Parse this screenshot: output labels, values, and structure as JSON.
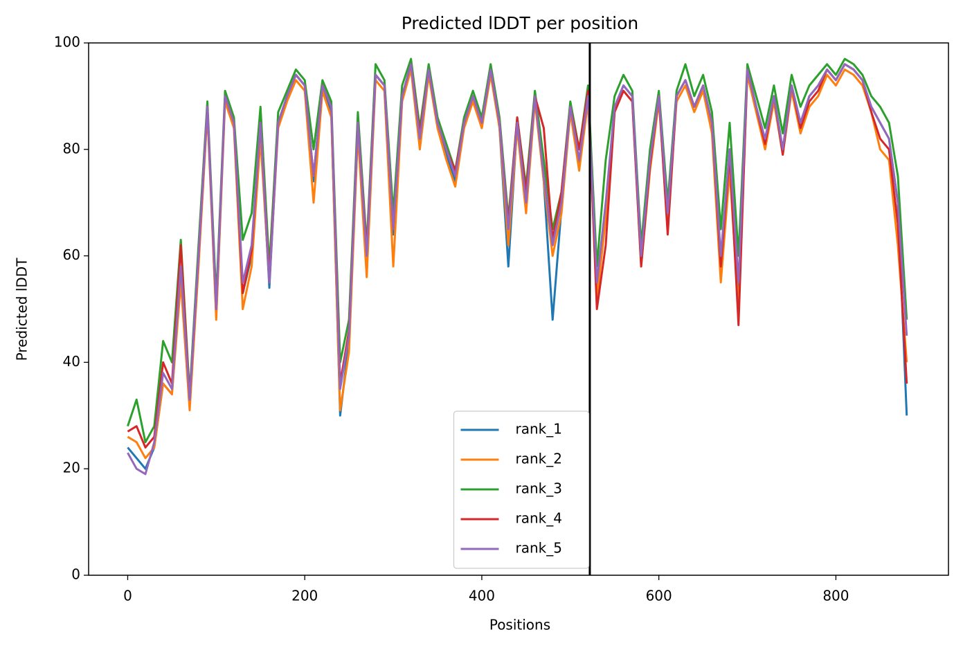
{
  "chart_data": {
    "type": "line",
    "title": "Predicted lDDT per position",
    "xlabel": "Positions",
    "ylabel": "Predicted lDDT",
    "x": [
      0,
      10,
      20,
      30,
      40,
      50,
      60,
      70,
      80,
      90,
      100,
      110,
      120,
      130,
      140,
      150,
      160,
      170,
      180,
      190,
      200,
      210,
      220,
      230,
      240,
      250,
      260,
      270,
      280,
      290,
      300,
      310,
      320,
      330,
      340,
      350,
      360,
      370,
      380,
      390,
      400,
      410,
      420,
      430,
      440,
      450,
      460,
      470,
      480,
      490,
      500,
      510,
      520,
      530,
      540,
      550,
      560,
      570,
      580,
      590,
      600,
      610,
      620,
      630,
      640,
      650,
      660,
      670,
      680,
      690,
      700,
      710,
      720,
      730,
      740,
      750,
      760,
      770,
      780,
      790,
      800,
      810,
      820,
      830,
      840,
      850,
      860,
      870,
      880
    ],
    "series": [
      {
        "name": "rank_1",
        "color": "#1f77b4",
        "values": [
          24,
          22,
          20,
          24,
          36,
          34,
          57,
          32,
          60,
          88,
          49,
          90,
          85,
          53,
          60,
          84,
          54,
          85,
          90,
          94,
          92,
          74,
          92,
          87,
          30,
          44,
          85,
          59,
          94,
          92,
          64,
          90,
          96,
          81,
          95,
          85,
          79,
          74,
          85,
          90,
          84,
          95,
          84,
          58,
          85,
          69,
          90,
          74,
          48,
          69,
          88,
          77,
          90,
          53,
          69,
          88,
          92,
          90,
          59,
          79,
          90,
          67,
          90,
          93,
          88,
          92,
          85,
          58,
          80,
          54,
          95,
          88,
          81,
          90,
          80,
          92,
          85,
          90,
          92,
          95,
          93,
          96,
          95,
          93,
          88,
          85,
          82,
          70,
          30
        ]
      },
      {
        "name": "rank_2",
        "color": "#ff7f0e",
        "values": [
          26,
          25,
          22,
          24,
          36,
          34,
          55,
          31,
          58,
          87,
          48,
          89,
          84,
          50,
          58,
          82,
          55,
          84,
          89,
          93,
          91,
          70,
          91,
          86,
          31,
          42,
          83,
          56,
          93,
          91,
          58,
          89,
          95,
          80,
          94,
          84,
          78,
          73,
          84,
          89,
          84,
          94,
          84,
          62,
          84,
          68,
          89,
          74,
          60,
          68,
          87,
          76,
          89,
          52,
          67,
          87,
          91,
          89,
          58,
          76,
          89,
          66,
          89,
          92,
          87,
          91,
          83,
          55,
          76,
          50,
          94,
          87,
          80,
          89,
          79,
          91,
          83,
          88,
          90,
          94,
          92,
          95,
          94,
          92,
          87,
          80,
          78,
          62,
          40
        ]
      },
      {
        "name": "rank_3",
        "color": "#2ca02c",
        "values": [
          28,
          33,
          25,
          28,
          44,
          40,
          63,
          34,
          62,
          89,
          52,
          91,
          86,
          63,
          68,
          88,
          58,
          87,
          91,
          95,
          93,
          80,
          93,
          89,
          40,
          48,
          87,
          62,
          96,
          93,
          68,
          92,
          97,
          84,
          96,
          86,
          81,
          76,
          86,
          91,
          86,
          96,
          86,
          67,
          86,
          73,
          91,
          78,
          65,
          72,
          89,
          80,
          92,
          58,
          78,
          90,
          94,
          91,
          62,
          80,
          91,
          70,
          91,
          96,
          90,
          94,
          87,
          65,
          85,
          60,
          96,
          90,
          84,
          92,
          83,
          94,
          88,
          92,
          94,
          96,
          94,
          97,
          96,
          94,
          90,
          88,
          85,
          75,
          48
        ]
      },
      {
        "name": "rank_4",
        "color": "#d62728",
        "values": [
          27,
          28,
          24,
          26,
          40,
          36,
          62,
          33,
          60,
          88,
          50,
          90,
          85,
          53,
          61,
          85,
          56,
          85,
          90,
          94,
          92,
          75,
          92,
          88,
          36,
          46,
          85,
          61,
          94,
          92,
          65,
          90,
          96,
          83,
          95,
          85,
          80,
          76,
          85,
          90,
          85,
          95,
          85,
          66,
          86,
          72,
          90,
          84,
          63,
          72,
          88,
          80,
          91,
          50,
          62,
          87,
          91,
          89,
          58,
          77,
          90,
          64,
          90,
          93,
          88,
          92,
          85,
          58,
          79,
          47,
          95,
          88,
          81,
          90,
          79,
          92,
          84,
          89,
          91,
          95,
          93,
          96,
          95,
          93,
          87,
          82,
          80,
          66,
          36
        ]
      },
      {
        "name": "rank_5",
        "color": "#9467bd",
        "values": [
          23,
          20,
          19,
          25,
          38,
          35,
          58,
          33,
          60,
          88,
          50,
          90,
          85,
          55,
          62,
          85,
          55,
          85,
          90,
          94,
          92,
          75,
          92,
          88,
          35,
          45,
          85,
          60,
          94,
          92,
          65,
          90,
          96,
          82,
          95,
          85,
          80,
          75,
          85,
          90,
          85,
          95,
          85,
          65,
          85,
          70,
          90,
          75,
          62,
          70,
          88,
          78,
          90,
          55,
          70,
          88,
          92,
          90,
          60,
          78,
          90,
          68,
          90,
          93,
          88,
          92,
          85,
          60,
          80,
          55,
          95,
          88,
          82,
          90,
          80,
          92,
          85,
          90,
          92,
          95,
          93,
          96,
          95,
          93,
          88,
          85,
          82,
          70,
          45
        ]
      }
    ],
    "vlines": [
      522
    ],
    "vline_color": "#000000",
    "xlim": [
      -44.15,
      927.15
    ],
    "xticks": [
      0,
      200,
      400,
      600,
      800
    ],
    "ylim": [
      0,
      100
    ],
    "yticks": [
      0,
      20,
      40,
      60,
      80,
      100
    ],
    "legend": "lower center"
  }
}
